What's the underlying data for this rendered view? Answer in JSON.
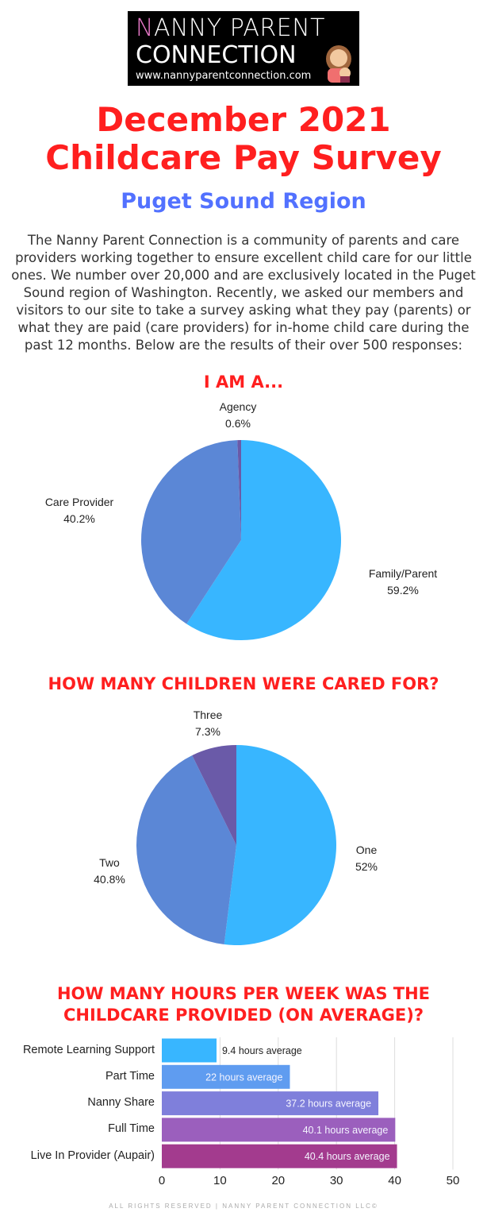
{
  "logo": {
    "line1_first": "N",
    "line1_rest": "ANNY PARENT",
    "line2": "CONNECTION",
    "url": "www.nannyparentconnection.com"
  },
  "title_line1": "December 2021",
  "title_line2": "Childcare Pay Survey",
  "subtitle": "Puget Sound Region",
  "intro": "The Nanny Parent Connection is a community of parents and care providers working together to ensure excellent child care for our little ones. We number over 20,000 and are exclusively located in the Puget Sound region of Washington. Recently, we asked our members and visitors to our site to take a survey asking what they pay (parents) or what they are paid (care providers) for in-home child care during the past 12 months. Below are the results of their over 500 responses:",
  "footer": "ALL RIGHTS RESERVED | NANNY PARENT CONNECTION LLC©",
  "chart_data": [
    {
      "type": "pie",
      "title": "I AM A...",
      "slices": [
        {
          "label": "Family/Parent",
          "value": 59.2,
          "display": "59.2%",
          "color": "#38b6ff"
        },
        {
          "label": "Care Provider",
          "value": 40.2,
          "display": "40.2%",
          "color": "#5b87d6"
        },
        {
          "label": "Agency",
          "value": 0.6,
          "display": "0.6%",
          "color": "#6a5aa8"
        }
      ]
    },
    {
      "type": "pie",
      "title": "HOW MANY CHILDREN WERE CARED FOR?",
      "slices": [
        {
          "label": "One",
          "value": 52,
          "display": "52%",
          "color": "#38b6ff"
        },
        {
          "label": "Two",
          "value": 40.8,
          "display": "40.8%",
          "color": "#5b87d6"
        },
        {
          "label": "Three",
          "value": 7.3,
          "display": "7.3%",
          "color": "#6a5aa8"
        }
      ]
    },
    {
      "type": "bar",
      "orientation": "horizontal",
      "title_line1": "HOW MANY HOURS PER WEEK WAS THE",
      "title_line2": "CHILDCARE PROVIDED (ON AVERAGE)?",
      "categories": [
        "Remote Learning Support",
        "Part Time",
        "Nanny Share",
        "Full Time",
        "Live In Provider (Aupair)"
      ],
      "values": [
        9.4,
        22,
        37.2,
        40.1,
        40.4
      ],
      "data_labels": [
        "9.4 hours average",
        "22 hours average",
        "37.2 hours average",
        "40.1 hours average",
        "40.4 hours average"
      ],
      "colors": [
        "#38b6ff",
        "#5f9cf0",
        "#7f7fdb",
        "#9b5fbd",
        "#a33b8e"
      ],
      "xlim": [
        0,
        50
      ],
      "xticks": [
        "0",
        "10",
        "20",
        "30",
        "40",
        "50"
      ],
      "grid": true
    }
  ]
}
